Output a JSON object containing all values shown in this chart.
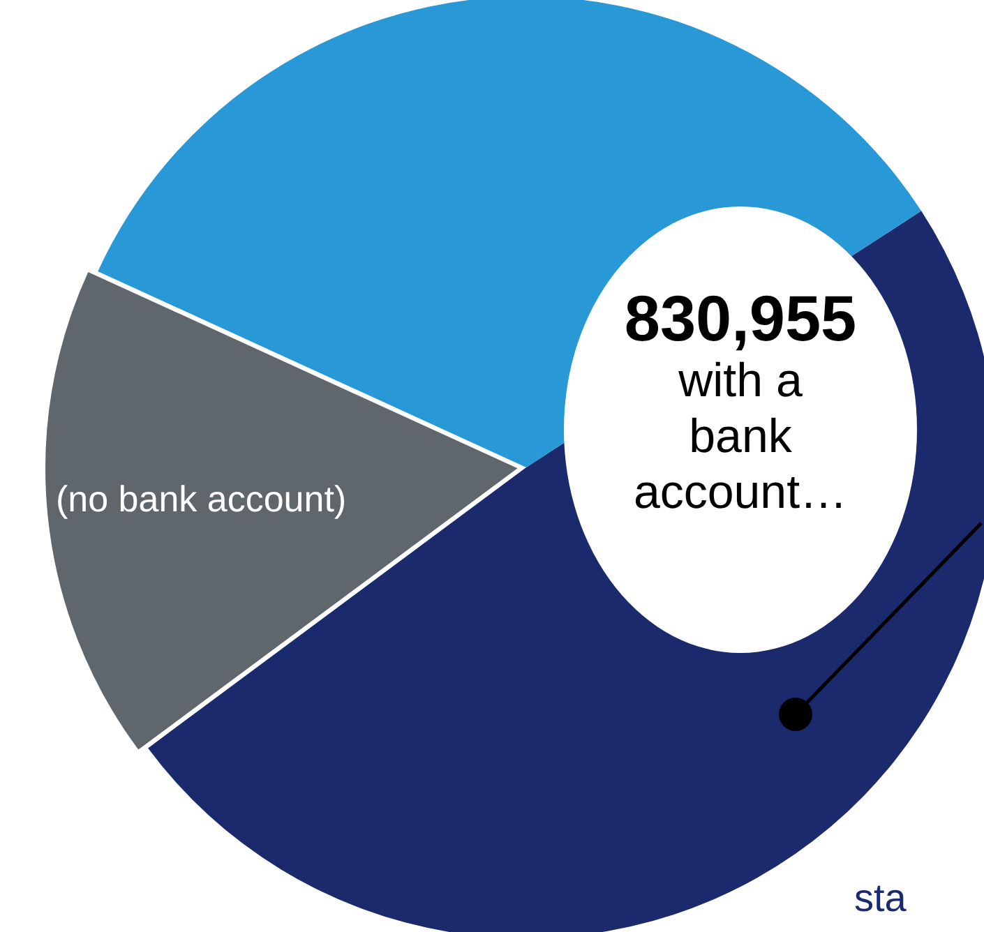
{
  "chart_data": {
    "type": "pie",
    "categories": [
      null,
      "(no bank account)",
      null
    ],
    "values": [
      49,
      17,
      34
    ],
    "colors": [
      "#1b2a6c",
      "#5f676c",
      "#2899d6"
    ],
    "annotations": [
      "830,955",
      "with a bank account…",
      "sta"
    ]
  }
}
